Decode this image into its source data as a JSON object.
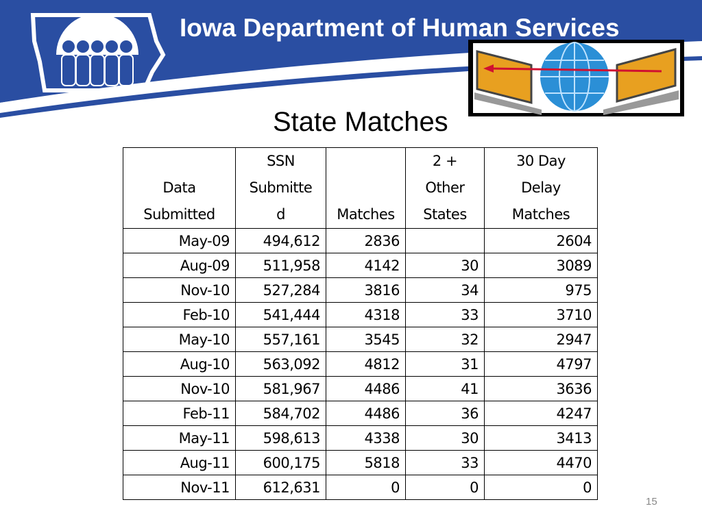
{
  "header": {
    "title": "Iowa Department of Human Services"
  },
  "slide": {
    "title": "State Matches",
    "page_number": "15"
  },
  "table": {
    "columns": [
      [
        "Data",
        "Submitted"
      ],
      [
        "SSN",
        "Submitte",
        "d"
      ],
      [
        "Matches"
      ],
      [
        "2 +",
        "Other",
        "States"
      ],
      [
        "30 Day",
        "Delay",
        "Matches"
      ]
    ],
    "rows": [
      [
        "May-09",
        "494,612",
        "2836",
        null,
        "2604"
      ],
      [
        "Aug-09",
        "511,958",
        "4142",
        "30",
        "3089"
      ],
      [
        "Nov-10",
        "527,284",
        "3816",
        "34",
        "975"
      ],
      [
        "Feb-10",
        "541,444",
        "4318",
        "33",
        "3710"
      ],
      [
        "May-10",
        "557,161",
        "3545",
        "32",
        "2947"
      ],
      [
        "Aug-10",
        "563,092",
        "4812",
        "31",
        "4797"
      ],
      [
        "Nov-10",
        "581,967",
        "4486",
        "41",
        "3636"
      ],
      [
        "Feb-11",
        "584,702",
        "4486",
        "36",
        "4247"
      ],
      [
        "May-11",
        "598,613",
        "4338",
        "30",
        "3413"
      ],
      [
        "Aug-11",
        "600,175",
        "5818",
        "33",
        "4470"
      ],
      [
        "Nov-11",
        "612,631",
        "0",
        "0",
        "0"
      ]
    ]
  }
}
